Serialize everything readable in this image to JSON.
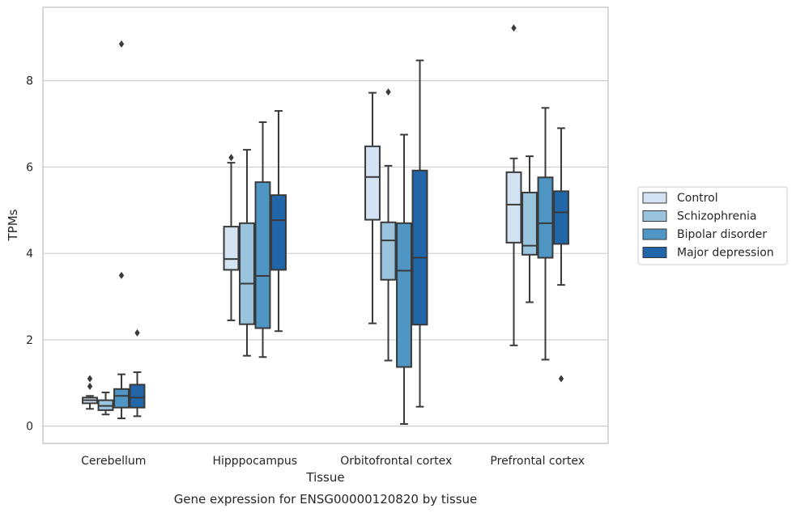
{
  "chart_data": {
    "type": "box",
    "title": "",
    "caption": "Gene expression for ENSG00000120820 by tissue",
    "xlabel": "Tissue",
    "ylabel": "TPMs",
    "ylim": [
      -0.4,
      9.7
    ],
    "yticks": [
      0,
      2,
      4,
      6,
      8
    ],
    "grid": "horizontal",
    "legend_position": "right",
    "categories": [
      "Cerebellum",
      "Hipppocampus",
      "Orbitofrontal cortex",
      "Prefrontal cortex"
    ],
    "series": [
      {
        "name": "Control",
        "color": "#d4e3f3",
        "boxes": [
          {
            "whisker_low": 0.4,
            "q1": 0.53,
            "median": 0.6,
            "q3": 0.66,
            "whisker_high": 0.7,
            "outliers": [
              1.1,
              0.92
            ]
          },
          {
            "whisker_low": 2.45,
            "q1": 3.62,
            "median": 3.87,
            "q3": 4.62,
            "whisker_high": 6.1,
            "outliers": [
              6.22
            ]
          },
          {
            "whisker_low": 2.38,
            "q1": 4.78,
            "median": 5.77,
            "q3": 6.48,
            "whisker_high": 7.72,
            "outliers": []
          },
          {
            "whisker_low": 1.87,
            "q1": 4.25,
            "median": 5.13,
            "q3": 5.88,
            "whisker_high": 6.2,
            "outliers": [
              9.22
            ]
          }
        ]
      },
      {
        "name": "Schizophrenia",
        "color": "#9ac4de",
        "boxes": [
          {
            "whisker_low": 0.27,
            "q1": 0.37,
            "median": 0.47,
            "q3": 0.6,
            "whisker_high": 0.78,
            "outliers": []
          },
          {
            "whisker_low": 1.63,
            "q1": 2.36,
            "median": 3.3,
            "q3": 4.7,
            "whisker_high": 6.4,
            "outliers": []
          },
          {
            "whisker_low": 1.52,
            "q1": 3.39,
            "median": 4.3,
            "q3": 4.72,
            "whisker_high": 6.03,
            "outliers": [
              7.74
            ]
          },
          {
            "whisker_low": 2.87,
            "q1": 3.97,
            "median": 4.18,
            "q3": 5.41,
            "whisker_high": 6.25,
            "outliers": []
          }
        ]
      },
      {
        "name": "Bipolar disorder",
        "color": "#5096c5",
        "boxes": [
          {
            "whisker_low": 0.18,
            "q1": 0.43,
            "median": 0.7,
            "q3": 0.86,
            "whisker_high": 1.2,
            "outliers": [
              8.85,
              3.49
            ]
          },
          {
            "whisker_low": 1.6,
            "q1": 2.27,
            "median": 3.48,
            "q3": 5.65,
            "whisker_high": 7.04,
            "outliers": []
          },
          {
            "whisker_low": 0.05,
            "q1": 1.37,
            "median": 3.6,
            "q3": 4.7,
            "whisker_high": 6.75,
            "outliers": []
          },
          {
            "whisker_low": 1.54,
            "q1": 3.9,
            "median": 4.7,
            "q3": 5.76,
            "whisker_high": 7.37,
            "outliers": []
          }
        ]
      },
      {
        "name": "Major depression",
        "color": "#2166a9",
        "boxes": [
          {
            "whisker_low": 0.23,
            "q1": 0.43,
            "median": 0.66,
            "q3": 0.96,
            "whisker_high": 1.25,
            "outliers": [
              2.16
            ]
          },
          {
            "whisker_low": 2.2,
            "q1": 3.62,
            "median": 4.77,
            "q3": 5.35,
            "whisker_high": 7.3,
            "outliers": []
          },
          {
            "whisker_low": 0.45,
            "q1": 2.35,
            "median": 3.9,
            "q3": 5.92,
            "whisker_high": 8.47,
            "outliers": []
          },
          {
            "whisker_low": 3.27,
            "q1": 4.22,
            "median": 4.95,
            "q3": 5.44,
            "whisker_high": 6.9,
            "outliers": [
              1.1
            ]
          }
        ]
      }
    ]
  }
}
